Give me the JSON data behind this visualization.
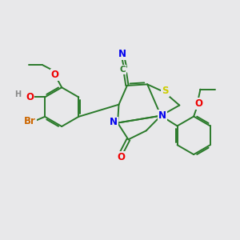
{
  "bg_color": "#e8e8ea",
  "bond_color": "#2a7a2a",
  "bond_width": 1.4,
  "atom_colors": {
    "N": "#0000ee",
    "S": "#cccc00",
    "O": "#ee0000",
    "Br": "#cc6600",
    "H": "#888888",
    "C": "#2a7a2a"
  },
  "font_size": 8.5
}
